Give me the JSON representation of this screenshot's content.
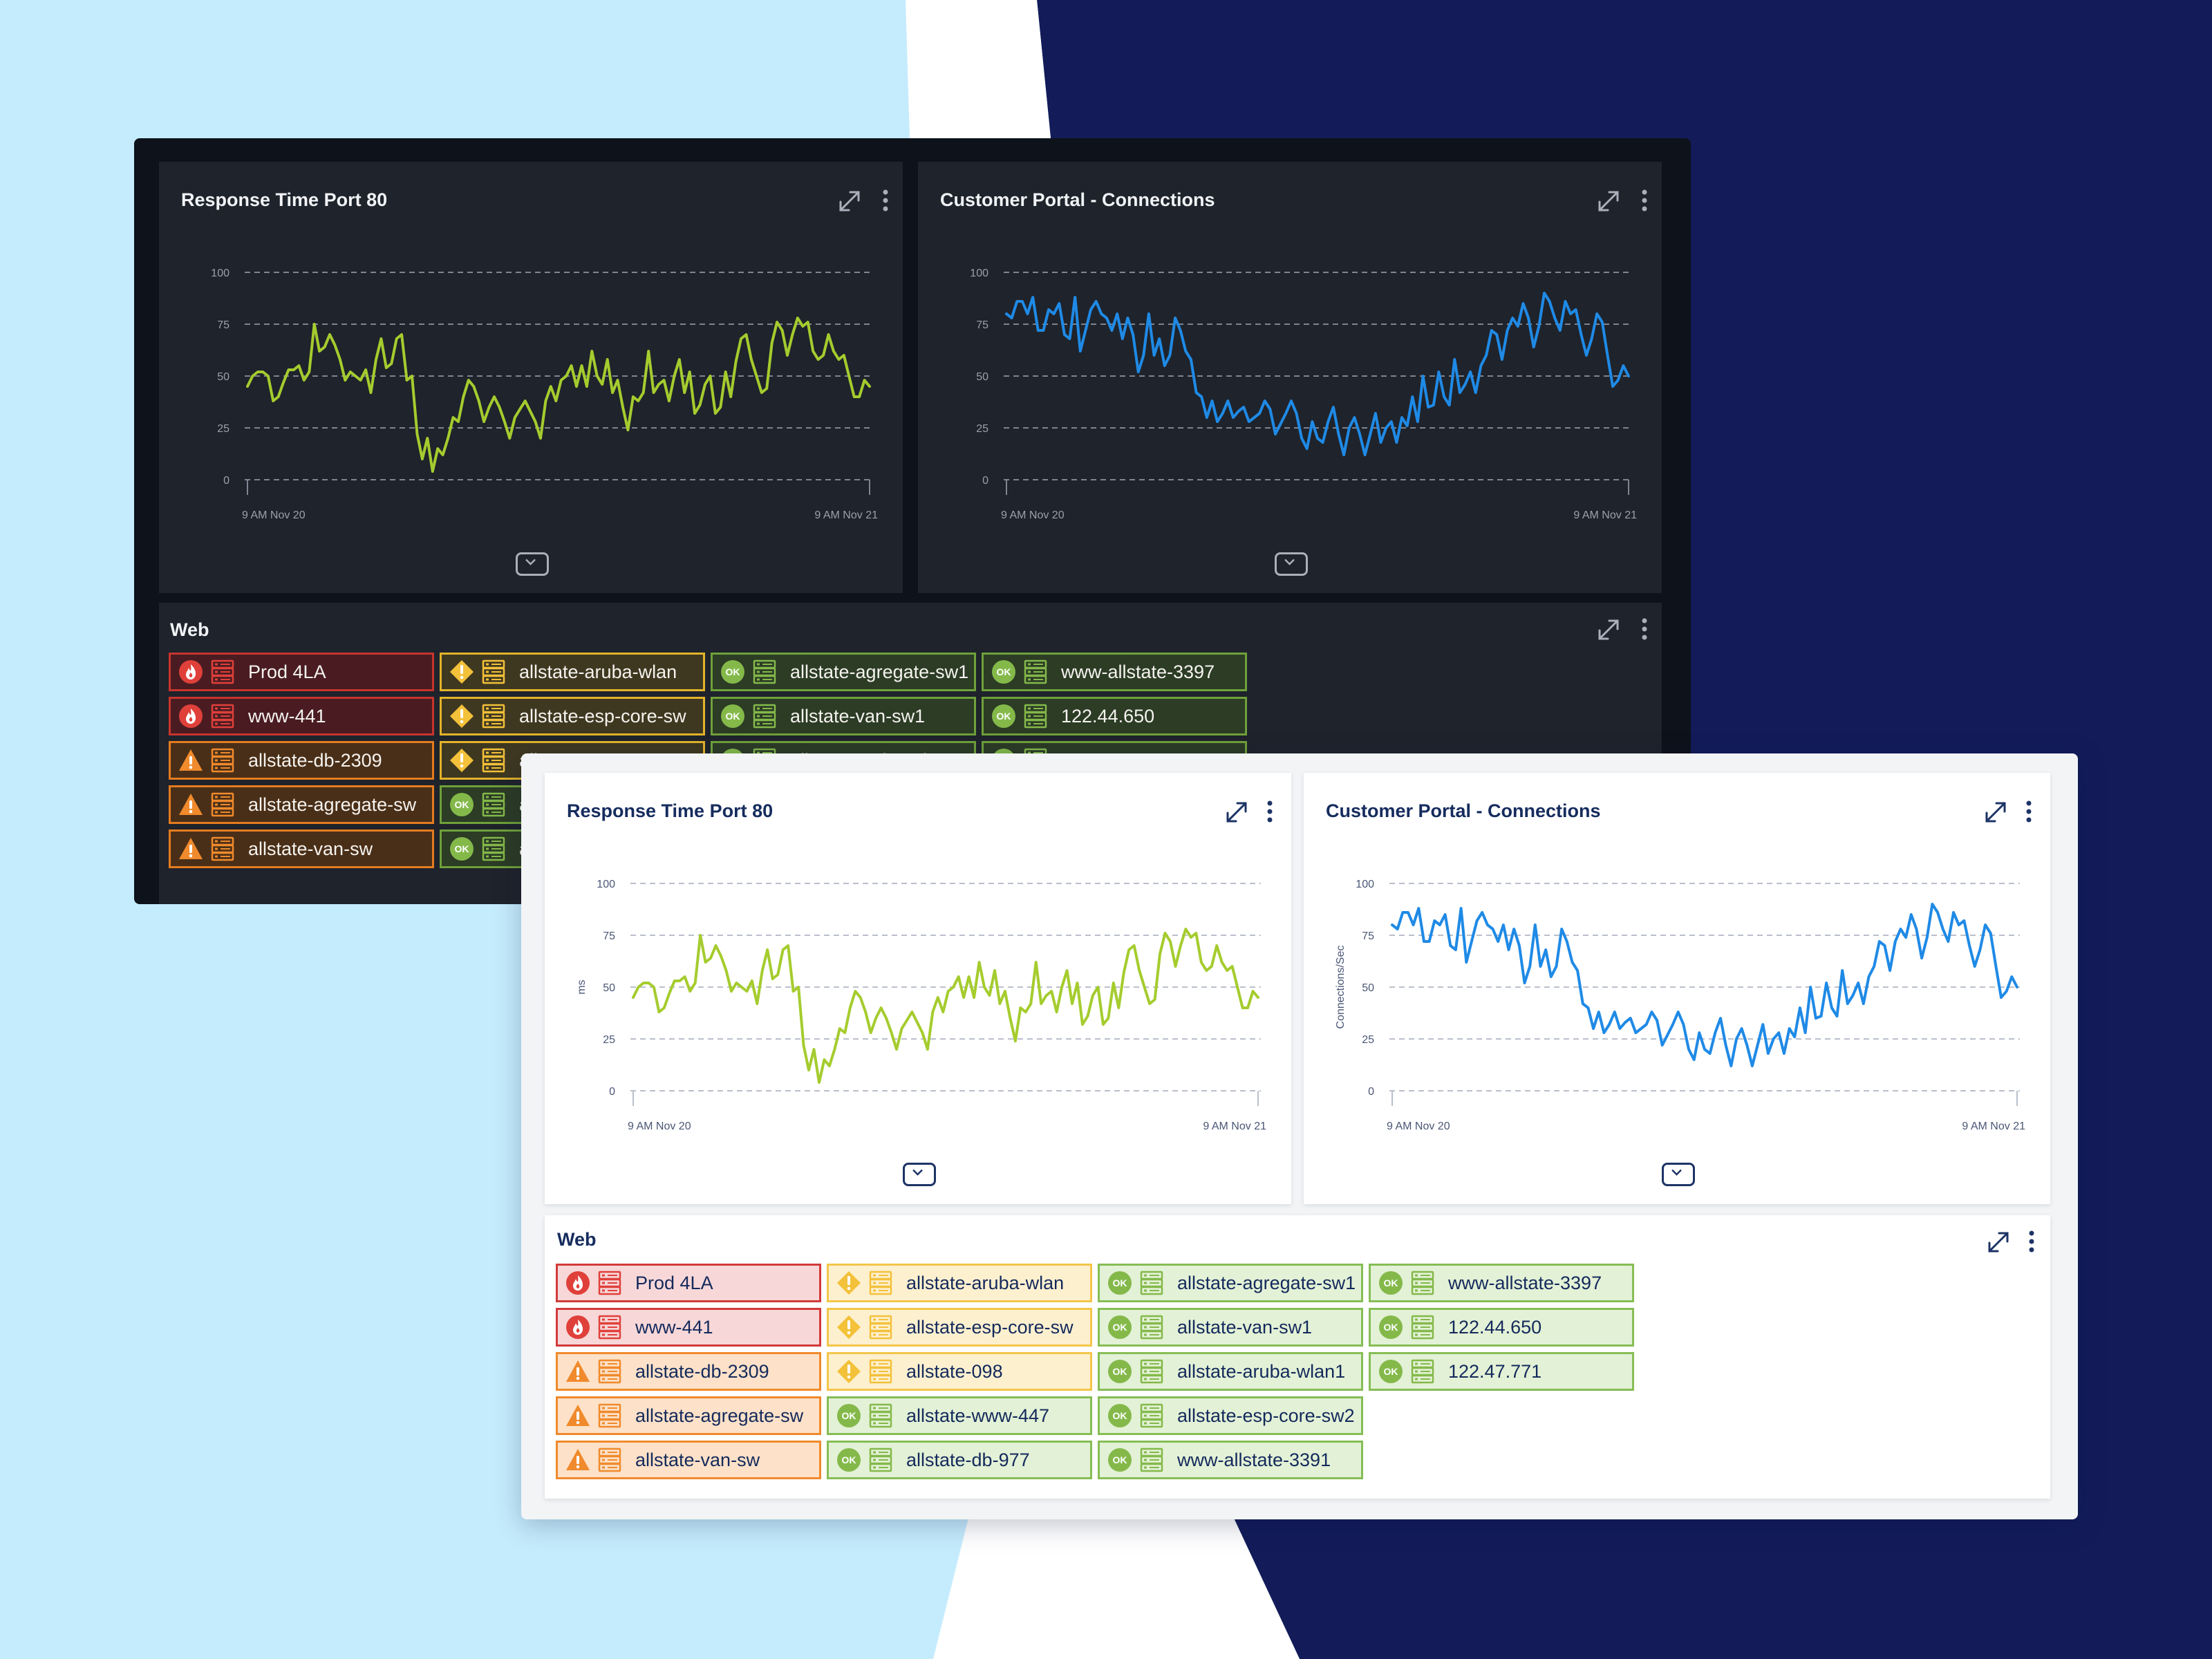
{
  "colors": {
    "background_light": "#c5ecfd",
    "background_navy": "#131c59",
    "series_green": "#a5cc2e",
    "series_blue": "#1f8ae6",
    "critical": "#e0403a",
    "error": "#f08a2c",
    "warning": "#f3c13a",
    "ok": "#84b94a"
  },
  "dark_dashboard": {
    "chart_response": {
      "title": "Response Time Port 80"
    },
    "chart_connections": {
      "title": "Customer Portal - Connections"
    },
    "web": {
      "title": "Web"
    }
  },
  "light_dashboard": {
    "chart_response": {
      "title": "Response Time Port 80"
    },
    "chart_connections": {
      "title": "Customer Portal - Connections"
    },
    "web": {
      "title": "Web"
    }
  },
  "web_tiles": [
    [
      {
        "name": "Prod 4LA",
        "status": "critical"
      },
      {
        "name": "www-441",
        "status": "critical"
      },
      {
        "name": "allstate-db-2309",
        "status": "error"
      },
      {
        "name": "allstate-agregate-sw",
        "status": "error"
      },
      {
        "name": "allstate-van-sw",
        "status": "error"
      }
    ],
    [
      {
        "name": "allstate-aruba-wlan",
        "status": "warning"
      },
      {
        "name": "allstate-esp-core-sw",
        "status": "warning"
      },
      {
        "name": "allstate-098",
        "status": "warning"
      },
      {
        "name": "allstate-www-447",
        "status": "ok"
      },
      {
        "name": "allstate-db-977",
        "status": "ok"
      }
    ],
    [
      {
        "name": "allstate-agregate-sw1",
        "status": "ok"
      },
      {
        "name": "allstate-van-sw1",
        "status": "ok"
      },
      {
        "name": "allstate-aruba-wlan1",
        "status": "ok"
      },
      {
        "name": "allstate-esp-core-sw2",
        "status": "ok"
      },
      {
        "name": "www-allstate-3391",
        "status": "ok"
      }
    ],
    [
      {
        "name": "www-allstate-3397",
        "status": "ok"
      },
      {
        "name": "122.44.650",
        "status": "ok"
      },
      {
        "name": "122.47.771",
        "status": "ok"
      }
    ]
  ],
  "status_icons": {
    "critical": "flame-icon",
    "error": "warning-triangle-icon",
    "warning": "warning-diamond-icon",
    "ok": "ok-badge-icon"
  },
  "ok_text": "OK",
  "chart_data": [
    {
      "type": "line",
      "title": "Response Time Port 80",
      "ylabel": "ms",
      "ylim": [
        0,
        100
      ],
      "yticks": [
        0,
        25,
        50,
        75,
        100
      ],
      "xlabels": [
        "9 AM Nov 20",
        "9 AM Nov 21"
      ],
      "grid": true,
      "series": [
        {
          "color": "#a5cc2e",
          "values": [
            45,
            50,
            52,
            52,
            50,
            38,
            40,
            47,
            53,
            53,
            55,
            48,
            52,
            75,
            62,
            64,
            70,
            65,
            58,
            48,
            52,
            50,
            48,
            53,
            42,
            58,
            68,
            54,
            56,
            68,
            70,
            48,
            50,
            22,
            10,
            20,
            4,
            15,
            12,
            20,
            30,
            28,
            40,
            48,
            45,
            38,
            28,
            35,
            40,
            35,
            28,
            20,
            30,
            34,
            38,
            33,
            28,
            20,
            38,
            45,
            38,
            48,
            50,
            55,
            45,
            55,
            45,
            62,
            50,
            46,
            58,
            42,
            48,
            35,
            24,
            40,
            38,
            42,
            62,
            42,
            46,
            48,
            38,
            50,
            58,
            42,
            52,
            32,
            36,
            46,
            50,
            32,
            35,
            52,
            40,
            57,
            68,
            70,
            58,
            50,
            42,
            44,
            66,
            76,
            72,
            60,
            70,
            78,
            74,
            76,
            62,
            58,
            60,
            70,
            62,
            58,
            60,
            50,
            40,
            40,
            48,
            45
          ]
        }
      ]
    },
    {
      "type": "line",
      "title": "Customer Portal - Connections",
      "ylabel": "Connections/Sec",
      "ylim": [
        0,
        100
      ],
      "yticks": [
        0,
        25,
        50,
        75,
        100
      ],
      "xlabels": [
        "9 AM Nov 20",
        "9 AM Nov 21"
      ],
      "grid": true,
      "series": [
        {
          "color": "#1f8ae6",
          "values": [
            80,
            78,
            86,
            86,
            80,
            88,
            72,
            72,
            82,
            80,
            85,
            70,
            68,
            88,
            62,
            72,
            82,
            86,
            80,
            78,
            72,
            80,
            68,
            78,
            70,
            52,
            60,
            80,
            60,
            68,
            55,
            60,
            78,
            72,
            62,
            58,
            42,
            40,
            30,
            38,
            28,
            32,
            38,
            30,
            33,
            35,
            28,
            30,
            32,
            38,
            34,
            22,
            27,
            32,
            38,
            32,
            20,
            15,
            28,
            20,
            18,
            28,
            35,
            22,
            12,
            25,
            30,
            22,
            12,
            22,
            32,
            18,
            25,
            28,
            18,
            30,
            26,
            40,
            28,
            50,
            35,
            36,
            52,
            40,
            36,
            58,
            42,
            46,
            52,
            42,
            55,
            60,
            72,
            70,
            58,
            72,
            78,
            74,
            85,
            78,
            64,
            74,
            90,
            86,
            78,
            72,
            86,
            80,
            82,
            70,
            60,
            68,
            80,
            76,
            60,
            45,
            48,
            55,
            50
          ]
        }
      ]
    }
  ]
}
